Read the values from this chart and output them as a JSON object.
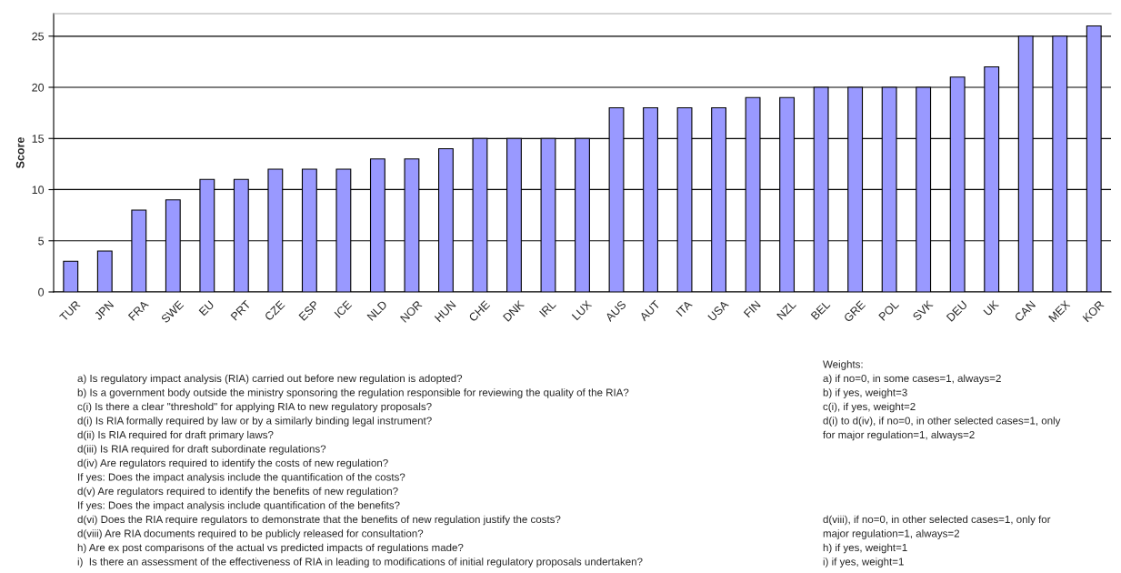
{
  "chart_data": {
    "type": "bar",
    "ylabel": "Score",
    "categories": [
      "TUR",
      "JPN",
      "FRA",
      "SWE",
      "EU",
      "PRT",
      "CZE",
      "ESP",
      "ICE",
      "NLD",
      "NOR",
      "HUN",
      "CHE",
      "DNK",
      "IRL",
      "LUX",
      "AUS",
      "AUT",
      "ITA",
      "USA",
      "FIN",
      "NZL",
      "BEL",
      "GRE",
      "POL",
      "SVK",
      "DEU",
      "UK",
      "CAN",
      "MEX",
      "KOR"
    ],
    "values": [
      3,
      4,
      8,
      9,
      11,
      11,
      12,
      12,
      12,
      13,
      13,
      14,
      15,
      15,
      15,
      15,
      18,
      18,
      18,
      18,
      19,
      19,
      20,
      20,
      20,
      20,
      21,
      22,
      25,
      25,
      26
    ],
    "color": "#9999ff",
    "ylim": [
      0,
      27.2
    ],
    "yticks": [
      0,
      5,
      10,
      15,
      20,
      25
    ],
    "grid": "y",
    "annotations": [
      "a) Is regulatory impact analysis (RIA) carried out before new regulation is adopted?",
      "b) Is a government body outside the ministry sponsoring the regulation responsible for reviewing the quality of the RIA?",
      "c(i) Is there a clear \"threshold\" for applying RIA to new regulatory proposals?",
      "d(i) Is RIA formally required by law or by a similarly binding legal instrument?",
      "d(ii) Is RIA required for draft primary laws?",
      "d(iii) Is RIA required for draft subordinate regulations?",
      "d(iv) Are regulators required to identify the costs of new regulation?",
      "If yes: Does the impact analysis include the quantification of the costs?",
      "d(v) Are regulators required to identify the benefits of new regulation?",
      "If yes: Does the impact analysis include quantification of the benefits?",
      "d(vi) Does the RIA require regulators to demonstrate that the benefits of new regulation justify the costs?",
      "d(viii) Are RIA documents required to be publicly released for consultation?",
      "h) Are ex post comparisons of the actual vs predicted impacts of regulations made?",
      "i)  Is there an assessment of the effectiveness of RIA in leading to modifications of initial regulatory proposals undertaken?",
      "Weights:",
      "a) if no=0, in some cases=1, always=2",
      "b) if yes, weight=3",
      "c(i), if yes, weight=2",
      "d(i) to d(iv), if no=0, in other selected cases=1, only",
      "for major regulation=1, always=2",
      "d(viii), if no=0, in other selected cases=1, only for",
      "major regulation=1, always=2",
      "h) if yes, weight=1",
      "i) if yes, weight=1"
    ]
  }
}
